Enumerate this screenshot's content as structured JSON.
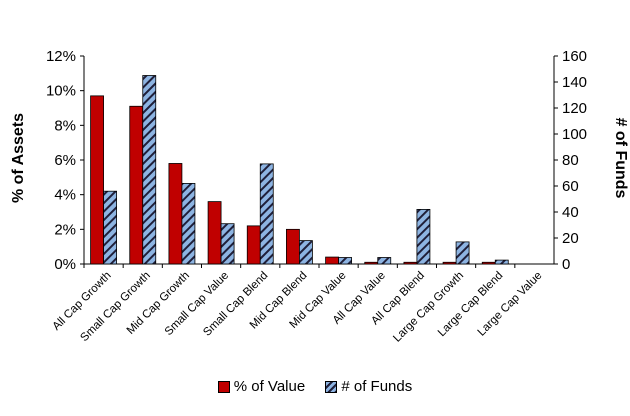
{
  "chart_data": {
    "type": "bar",
    "categories": [
      "All Cap Growth",
      "Small Cap Growth",
      "Mid Cap Growth",
      "Small Cap Value",
      "Small Cap Blend",
      "Mid Cap Blend",
      "Mid Cap Value",
      "All Cap Value",
      "All Cap Blend",
      "Large Cap Growth",
      "Large Cap Blend",
      "Large Cap Value"
    ],
    "series": [
      {
        "name": "% of Value",
        "axis": "left",
        "unit": "%",
        "color": "#c00000",
        "values": [
          9.7,
          9.1,
          5.8,
          3.6,
          2.2,
          2.0,
          0.4,
          0.1,
          0.1,
          0.1,
          0.1,
          0.0
        ]
      },
      {
        "name": "# of Funds",
        "axis": "right",
        "color": "#8db4e2",
        "pattern": "diagonal-hatch",
        "values": [
          56,
          145,
          62,
          31,
          77,
          18,
          5,
          5,
          42,
          17,
          3,
          0
        ]
      }
    ],
    "ylabel": "% of Assets",
    "y2label": "# of Funds",
    "ylim": [
      0,
      12
    ],
    "y2lim": [
      0,
      160
    ],
    "y_ticks": [
      "0%",
      "2%",
      "4%",
      "6%",
      "8%",
      "10%",
      "12%"
    ],
    "y2_ticks": [
      "0",
      "20",
      "40",
      "60",
      "80",
      "100",
      "120",
      "140",
      "160"
    ],
    "grid": false,
    "legend_position": "bottom"
  }
}
